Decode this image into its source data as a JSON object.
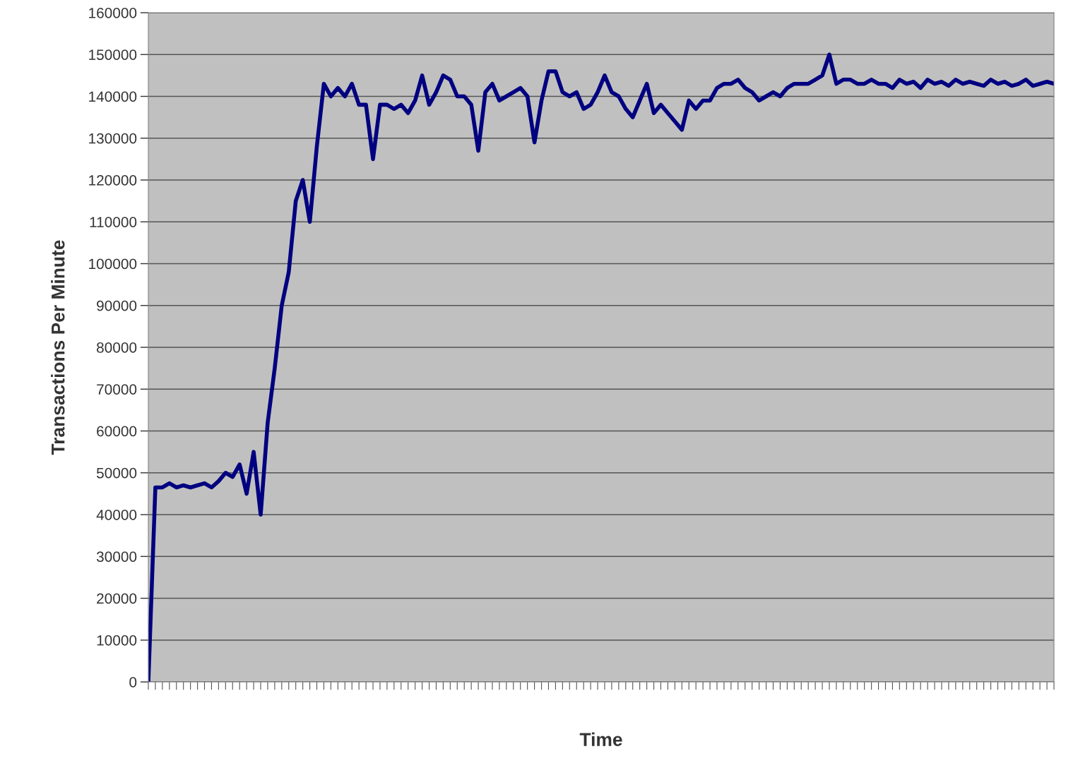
{
  "chart_data": {
    "type": "line",
    "xlabel": "Time",
    "ylabel": "Transactions Per Minute",
    "categories": [
      null,
      null,
      null,
      null,
      null,
      null,
      null,
      null,
      null,
      null,
      null,
      null,
      null,
      null,
      null,
      null,
      null,
      null,
      null,
      null,
      null,
      null,
      null,
      null,
      null,
      null,
      null,
      null,
      null,
      null,
      null,
      null,
      null,
      null,
      null,
      null,
      null,
      null,
      null,
      null,
      null,
      null,
      null,
      null,
      null,
      null,
      null,
      null,
      null,
      null,
      null,
      null,
      null,
      null,
      null,
      null,
      null,
      null,
      null,
      null,
      null,
      null,
      null,
      null,
      null,
      null,
      null,
      null,
      null,
      null,
      null,
      null,
      null,
      null,
      null,
      null,
      null,
      null,
      null,
      null,
      null,
      null,
      null,
      null,
      null,
      null,
      null,
      null,
      null,
      null,
      null,
      null,
      null,
      null,
      null,
      null,
      null,
      null,
      null,
      null,
      null,
      null,
      null,
      null,
      null,
      null,
      null,
      null,
      null,
      null,
      null,
      null,
      null,
      null,
      null,
      null,
      null,
      null,
      null,
      null,
      null,
      null,
      null,
      null,
      null,
      null,
      null,
      null,
      null,
      null
    ],
    "series": [
      {
        "color": "#000080",
        "values": [
          0,
          46500,
          46500,
          47500,
          46500,
          47000,
          46500,
          47000,
          47500,
          46500,
          48000,
          50000,
          49000,
          52000,
          45000,
          55000,
          40000,
          62000,
          75000,
          90000,
          98000,
          115000,
          120000,
          110000,
          128000,
          143000,
          140000,
          142000,
          140000,
          143000,
          138000,
          138000,
          125000,
          138000,
          138000,
          137000,
          138000,
          136000,
          139000,
          145000,
          138000,
          141000,
          145000,
          144000,
          140000,
          140000,
          138000,
          127000,
          141000,
          143000,
          139000,
          140000,
          141000,
          142000,
          140000,
          129000,
          139000,
          146000,
          146000,
          141000,
          140000,
          141000,
          137000,
          138000,
          141000,
          145000,
          141000,
          140000,
          137000,
          135000,
          139000,
          143000,
          136000,
          138000,
          136000,
          134000,
          132000,
          139000,
          137000,
          139000,
          139000,
          142000,
          143000,
          143000,
          144000,
          142000,
          141000,
          139000,
          140000,
          141000,
          140000,
          142000,
          143000,
          143000,
          143000,
          144000,
          145000,
          150000,
          143000,
          144000,
          144000,
          143000,
          143000,
          144000,
          143000,
          143000,
          142000,
          144000,
          143000,
          143500,
          142000,
          144000,
          143000,
          143500,
          142500,
          144000,
          143000,
          143500,
          143000,
          142500,
          144000,
          143000,
          143500,
          142500,
          143000,
          144000,
          142500,
          143000,
          143500,
          143000
        ]
      }
    ],
    "ylim": [
      0,
      160000
    ],
    "yticks": [
      0,
      10000,
      20000,
      30000,
      40000,
      50000,
      60000,
      70000,
      80000,
      90000,
      100000,
      110000,
      120000,
      130000,
      140000,
      150000,
      160000
    ],
    "grid": "y",
    "legend": false,
    "marker": "none",
    "line_style": "solid"
  }
}
